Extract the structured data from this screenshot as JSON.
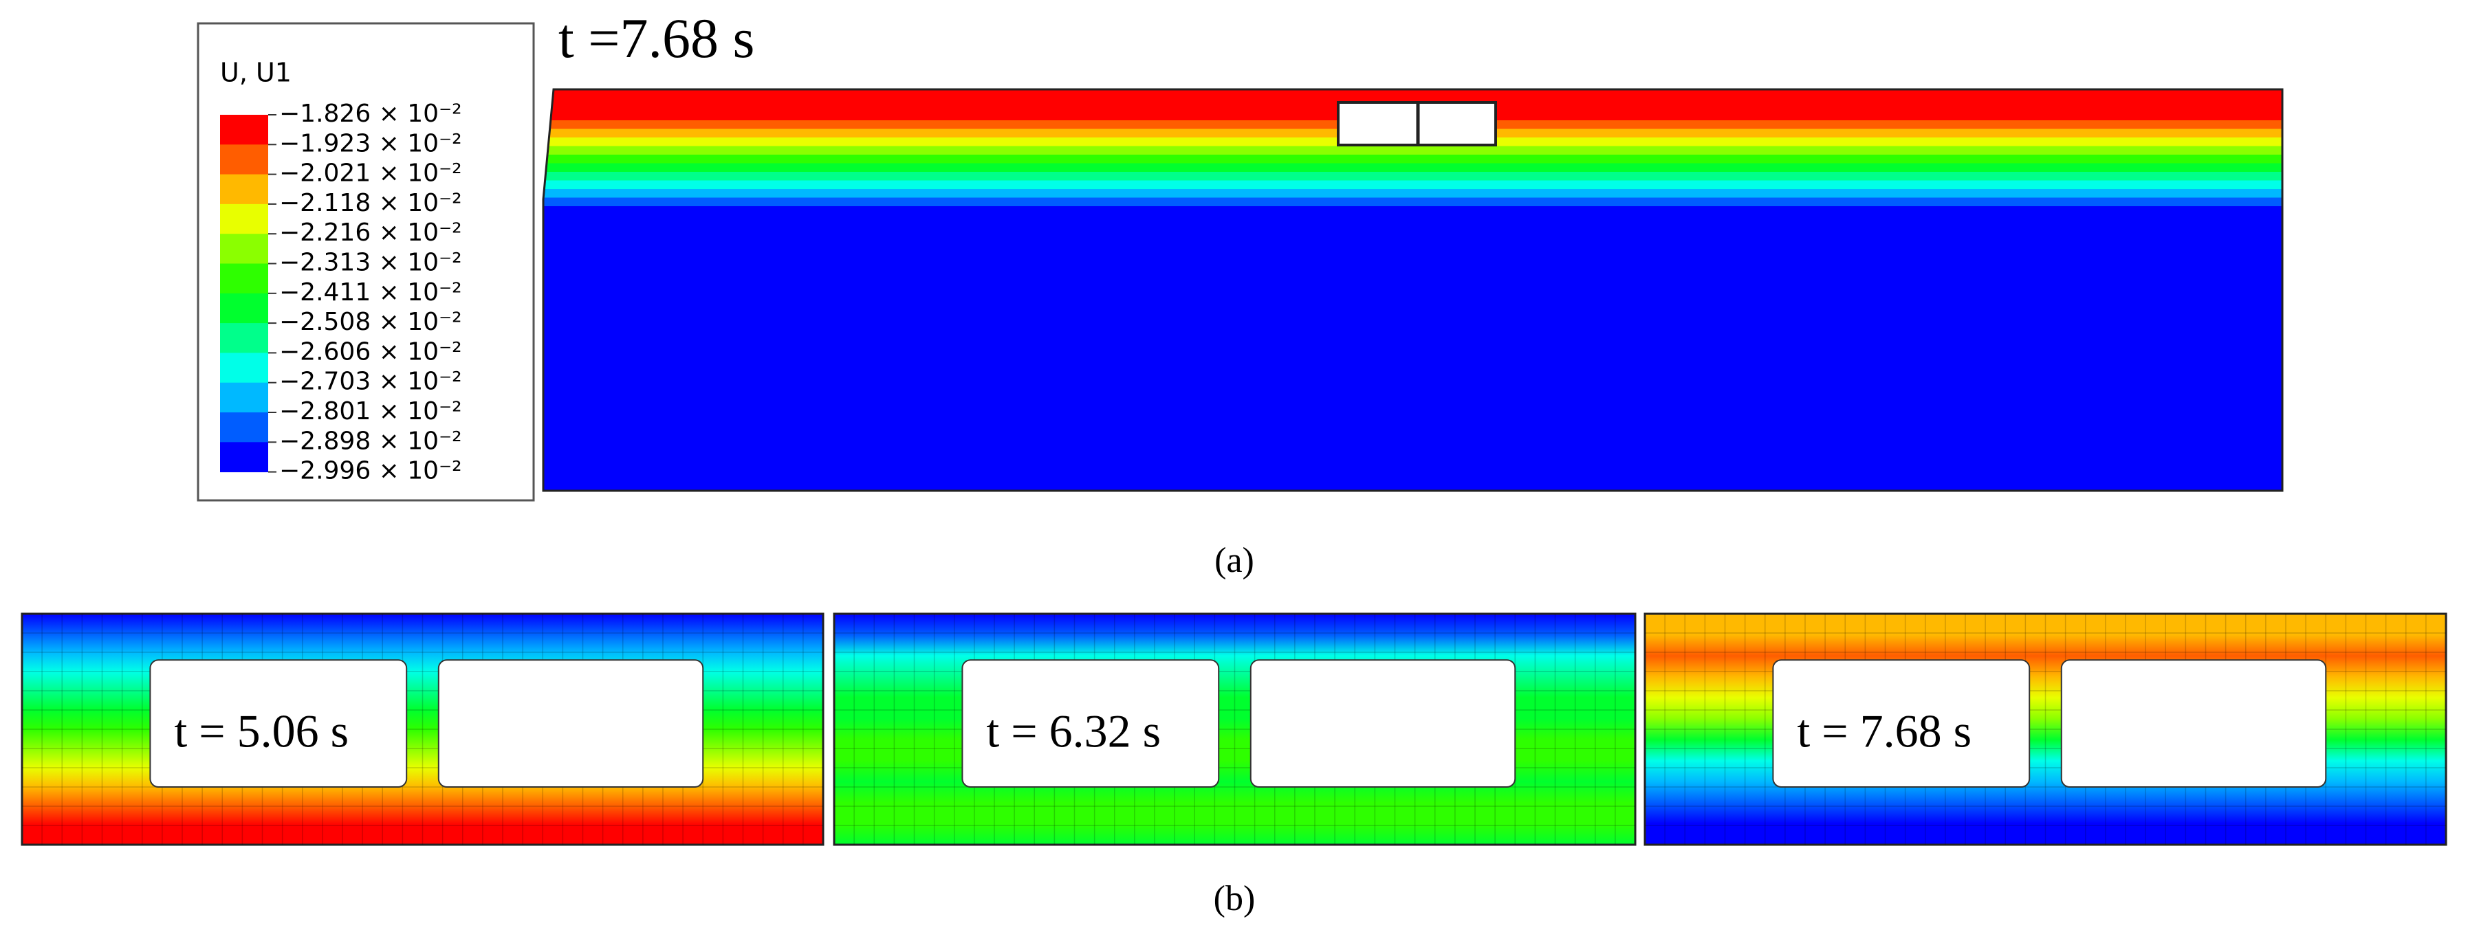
{
  "figure": {
    "legend": {
      "title": "U, U1",
      "labels": [
        "−1.826 × 10⁻²",
        "−1.923 × 10⁻²",
        "−2.021 × 10⁻²",
        "−2.118 × 10⁻²",
        "−2.216 × 10⁻²",
        "−2.313 × 10⁻²",
        "−2.411 × 10⁻²",
        "−2.508 × 10⁻²",
        "−2.606 × 10⁻²",
        "−2.703 × 10⁻²",
        "−2.801 × 10⁻²",
        "−2.898 × 10⁻²",
        "−2.996 × 10⁻²"
      ],
      "colors": [
        "#ff0000",
        "#ff5d00",
        "#ffb900",
        "#e8ff00",
        "#8bff00",
        "#2eff00",
        "#00ff2e",
        "#00ff8b",
        "#00ffe8",
        "#00b9ff",
        "#005dff",
        "#0000ff"
      ]
    },
    "panel_a": {
      "time_label": "t =7.68 s",
      "caption": "(a)"
    },
    "panel_b": {
      "panels": [
        {
          "time_label": "t = 5.06 s"
        },
        {
          "time_label": "t = 6.32 s"
        },
        {
          "time_label": "t = 7.68 s"
        }
      ],
      "caption": "(b)"
    }
  }
}
